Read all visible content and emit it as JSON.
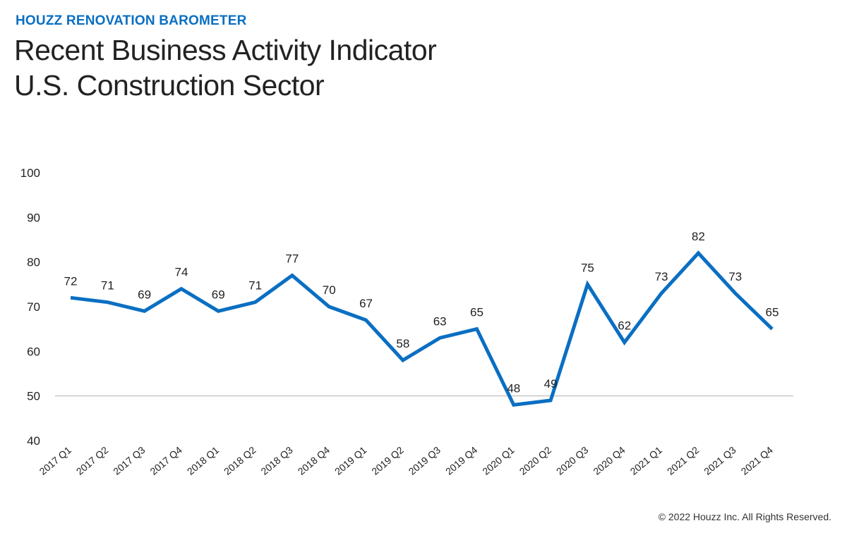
{
  "header": {
    "eyebrow": "HOUZZ RENOVATION BAROMETER",
    "title_line1": "Recent Business Activity Indicator",
    "title_line2": "U.S. Construction Sector"
  },
  "footer": {
    "copyright": "© 2022 Houzz Inc. All Rights Reserved."
  },
  "colors": {
    "line": "#0a6fc2",
    "text": "#222222",
    "baseline": "#b0b0b0"
  },
  "chart_data": {
    "type": "line",
    "title": "Recent Business Activity Indicator U.S. Construction Sector",
    "xlabel": "",
    "ylabel": "",
    "ylim": [
      40,
      100
    ],
    "yticks": [
      40,
      50,
      60,
      70,
      80,
      90,
      100
    ],
    "reference_line": 50,
    "grid": false,
    "categories": [
      "2017 Q1",
      "2017 Q2",
      "2017 Q3",
      "2017 Q4",
      "2018 Q1",
      "2018 Q2",
      "2018 Q3",
      "2018 Q4",
      "2019 Q1",
      "2019 Q2",
      "2019 Q3",
      "2019 Q4",
      "2020 Q1",
      "2020 Q2",
      "2020 Q3",
      "2020 Q4",
      "2021 Q1",
      "2021 Q2",
      "2021 Q3",
      "2021 Q4"
    ],
    "values": [
      72,
      71,
      69,
      74,
      69,
      71,
      77,
      70,
      67,
      58,
      63,
      65,
      48,
      49,
      75,
      62,
      73,
      82,
      73,
      65
    ]
  }
}
